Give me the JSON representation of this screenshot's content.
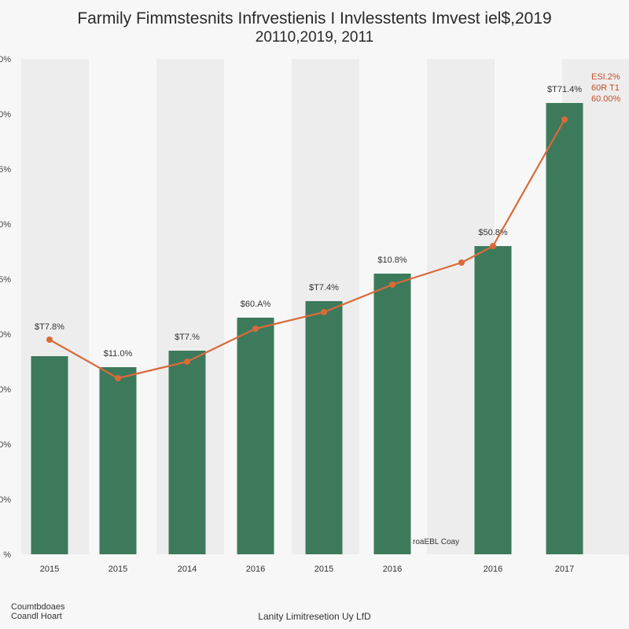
{
  "chart_data": {
    "type": "bar",
    "title": "Farmily Fimmstesnits Infrvestienis I Invlesstents Imvest iel$,2019",
    "subtitle": "20110,2019, 2011",
    "categories": [
      "2015",
      "2015",
      "2014",
      "2016",
      "2015",
      "2016",
      "",
      "2016",
      "2017"
    ],
    "x_tick_labels": [
      "2015",
      "2015",
      "2014",
      "2016",
      "2015",
      "2016",
      "2016",
      "2017"
    ],
    "bar_values": [
      3.6,
      3.4,
      3.7,
      4.3,
      4.6,
      5.1,
      5.6,
      8.2
    ],
    "bar_labels": [
      "$T7.8%",
      "$11.0%",
      "$T7.%",
      "$60.A%",
      "$T7.4%",
      "$10.8%",
      "$50.8%",
      "$T71.4%"
    ],
    "line_values": [
      3.9,
      3.2,
      3.5,
      4.1,
      4.4,
      4.9,
      5.3,
      5.6,
      7.9
    ],
    "y_tick_labels": [
      "%",
      "0%",
      "0%",
      "0%",
      "0%",
      "5%",
      "0%",
      "5%",
      "0%",
      "0%"
    ],
    "ylim": [
      0,
      9
    ],
    "grid": false,
    "line_end_labels": [
      "ESI.2%",
      "60R T1",
      "60.00%"
    ],
    "inline_note": "roaEBL Coay",
    "colors": {
      "bar": "#3d7a5c",
      "line": "#d96a3a",
      "line_label": "#c0502a",
      "band": "#e6e6e6"
    }
  },
  "footnote_left": [
    "Coumtbdoaes",
    "Coandl Hoart"
  ],
  "footnote_center": "Lanity Limitresetion Uy LfD"
}
